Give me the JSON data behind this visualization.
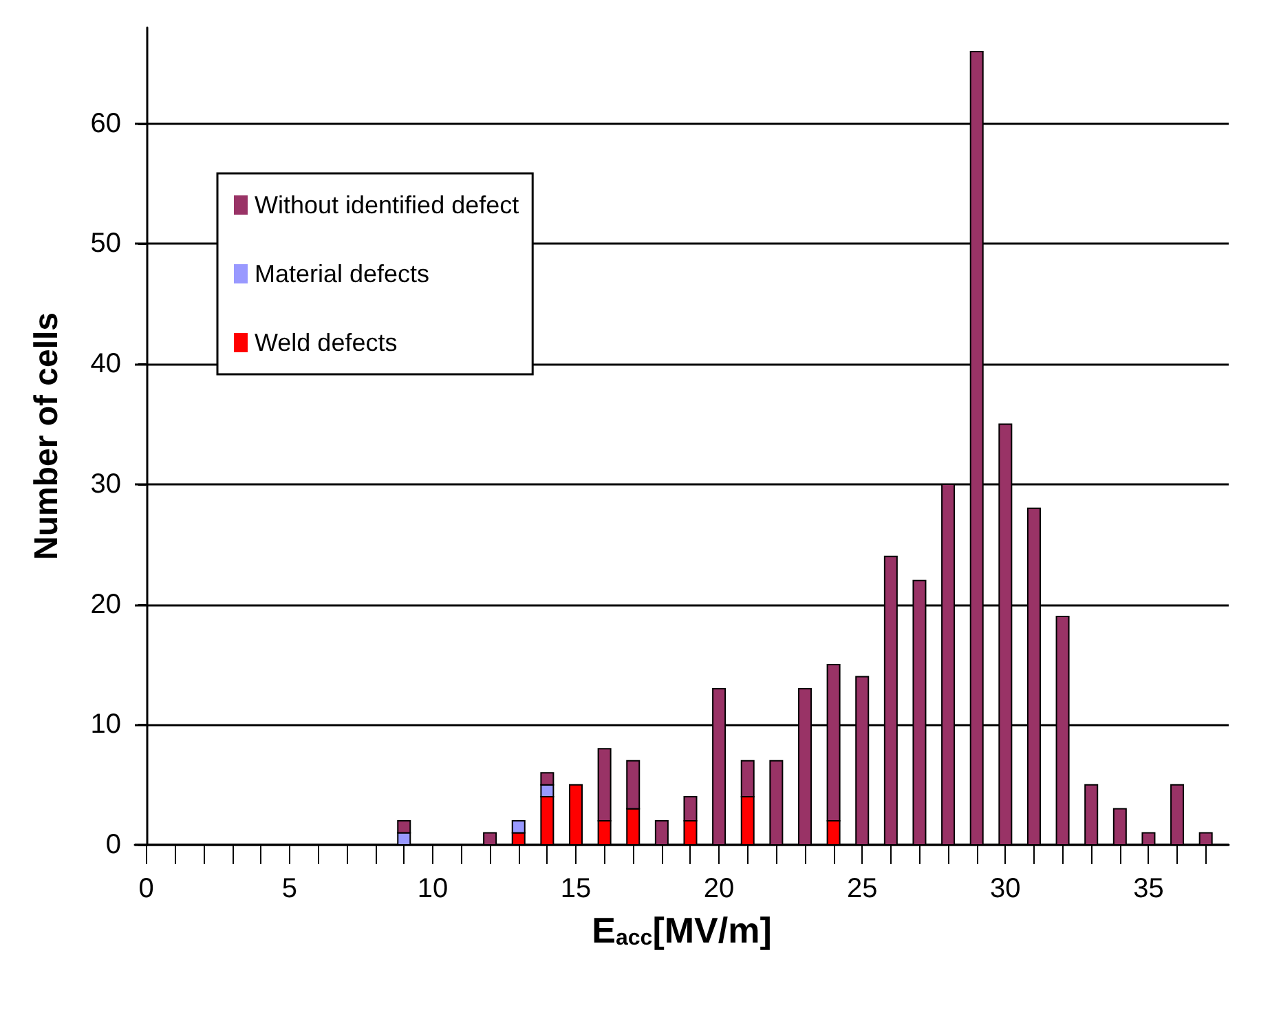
{
  "chart_data": {
    "type": "bar",
    "stacked": true,
    "xlabel": "E$_{acc}$[MV/m]",
    "ylabel": "Number of cells",
    "x": [
      9,
      12,
      13,
      14,
      15,
      16,
      17,
      18,
      19,
      20,
      21,
      22,
      23,
      24,
      25,
      26,
      27,
      28,
      29,
      30,
      31,
      32,
      33,
      34,
      35,
      36,
      37
    ],
    "series": [
      {
        "name": "Weld defects",
        "color": "#ff0000",
        "values": [
          null,
          null,
          1,
          4,
          5,
          2,
          3,
          null,
          2,
          null,
          4,
          null,
          null,
          2,
          null,
          null,
          null,
          null,
          null,
          null,
          null,
          null,
          null,
          null,
          null,
          null,
          null
        ]
      },
      {
        "name": "Material defects",
        "color": "#9999ff",
        "values": [
          1,
          null,
          1,
          1,
          null,
          null,
          null,
          null,
          null,
          null,
          null,
          null,
          null,
          null,
          null,
          null,
          null,
          null,
          null,
          null,
          null,
          null,
          null,
          null,
          null,
          null,
          null
        ]
      },
      {
        "name": "Without identified defect",
        "color": "#993366",
        "values": [
          1,
          1,
          null,
          1,
          null,
          6,
          4,
          2,
          2,
          13,
          3,
          7,
          13,
          13,
          14,
          24,
          22,
          30,
          66,
          35,
          28,
          19,
          5,
          3,
          1,
          5,
          1
        ]
      }
    ],
    "xlim": [
      -0.4,
      37.8
    ],
    "xticks": [
      0,
      {
        "value": 1,
        "label": null
      },
      {
        "value": 2,
        "label": null
      },
      {
        "value": 3,
        "label": null
      },
      {
        "value": 4,
        "label": null
      },
      5,
      {
        "value": 6,
        "label": null
      },
      {
        "value": 7,
        "label": null
      },
      {
        "value": 8,
        "label": null
      },
      {
        "value": 9,
        "label": null
      },
      10,
      {
        "value": 11,
        "label": null
      },
      {
        "value": 12,
        "label": null
      },
      {
        "value": 13,
        "label": null
      },
      {
        "value": 14,
        "label": null
      },
      15,
      {
        "value": 16,
        "label": null
      },
      {
        "value": 17,
        "label": null
      },
      {
        "value": 18,
        "label": null
      },
      {
        "value": 19,
        "label": null
      },
      20,
      {
        "value": 21,
        "label": null
      },
      {
        "value": 22,
        "label": null
      },
      {
        "value": 23,
        "label": null
      },
      {
        "value": 24,
        "label": null
      },
      25,
      {
        "value": 26,
        "label": null
      },
      {
        "value": 27,
        "label": null
      },
      {
        "value": 28,
        "label": null
      },
      {
        "value": 29,
        "label": null
      },
      30,
      {
        "value": 31,
        "label": null
      },
      {
        "value": 32,
        "label": null
      },
      {
        "value": 33,
        "label": null
      },
      {
        "value": 34,
        "label": null
      },
      35,
      {
        "value": 36,
        "label": null
      },
      {
        "value": 37,
        "label": null
      }
    ],
    "ylim": [
      0,
      68
    ],
    "yticks": [
      0,
      10,
      20,
      30,
      40,
      50,
      60
    ],
    "grid": "y",
    "legend": "top left"
  }
}
